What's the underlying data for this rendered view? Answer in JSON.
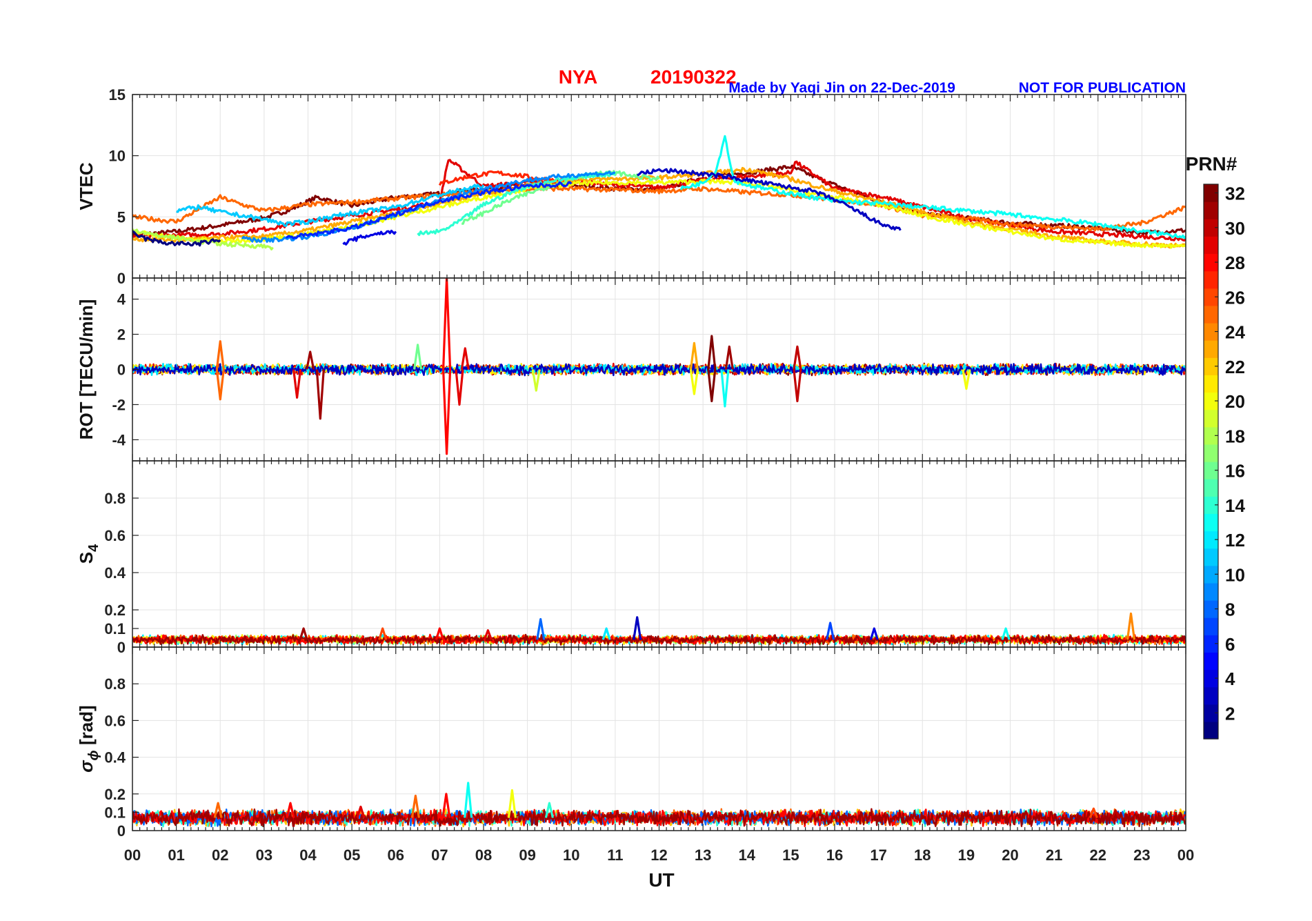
{
  "header": {
    "station": "NYA",
    "date": "20190322",
    "credit": "Made by Yaqi Jin on 22-Dec-2019",
    "notice": "NOT FOR PUBLICATION"
  },
  "colors": {
    "title": "#ff0000",
    "credit": "#0000ff",
    "notice": "#0000ff"
  },
  "chart_data": {
    "type": "line",
    "xlabel": "UT",
    "xlim": [
      0,
      24
    ],
    "x_ticks": [
      0,
      1,
      2,
      3,
      4,
      5,
      6,
      7,
      8,
      9,
      10,
      11,
      12,
      13,
      14,
      15,
      16,
      17,
      18,
      19,
      20,
      21,
      22,
      23,
      24
    ],
    "x_tick_labels": [
      "00",
      "01",
      "02",
      "03",
      "04",
      "05",
      "06",
      "07",
      "08",
      "09",
      "10",
      "11",
      "12",
      "13",
      "14",
      "15",
      "16",
      "17",
      "18",
      "19",
      "20",
      "21",
      "22",
      "23",
      "00"
    ],
    "grid": true,
    "colorbar": {
      "label": "PRN#",
      "min": 1,
      "max": 32,
      "ticks": [
        2,
        4,
        6,
        8,
        10,
        12,
        14,
        16,
        18,
        20,
        22,
        24,
        26,
        28,
        30,
        32
      ],
      "colormap": "jet",
      "placement": "right"
    },
    "panels": [
      {
        "id": "vtec",
        "ylabel": "VTEC",
        "ylim": [
          0,
          15
        ],
        "y_ticks": [
          0,
          5,
          10,
          15
        ],
        "y_tick_labels": [
          "0",
          "5",
          "10",
          "15"
        ],
        "series": [
          {
            "prn": 32,
            "x": [
              0.0,
              1.0,
              2.0,
              3.0,
              3.6,
              4.2,
              5.0,
              6.0,
              7.0,
              8.0,
              9.0,
              10.0,
              11.0,
              12.0,
              13.0,
              14.0,
              15.0,
              16.0,
              17.0,
              18.0,
              19.0,
              20.0,
              21.0,
              22.0,
              23.0,
              24.0
            ],
            "y": [
              3.5,
              3.8,
              4.3,
              4.9,
              5.6,
              6.6,
              5.9,
              6.6,
              6.9,
              7.3,
              7.6,
              7.6,
              7.3,
              7.2,
              8.2,
              8.6,
              9.1,
              7.6,
              6.3,
              5.2,
              4.9,
              4.5,
              4.3,
              4.1,
              3.7,
              3.9
            ]
          },
          {
            "prn": 29,
            "x": [
              0.0,
              1.0,
              2.0,
              3.0,
              4.0,
              5.0,
              6.0,
              7.0,
              7.2,
              8.0,
              9.0,
              10.0,
              11.0,
              12.0,
              13.0,
              14.0,
              15.0,
              15.1,
              16.0,
              17.0,
              18.0,
              19.0,
              20.0,
              21.0,
              22.0,
              23.0,
              24.0
            ],
            "y": [
              3.4,
              3.5,
              3.6,
              4.0,
              4.6,
              5.1,
              5.6,
              6.2,
              9.7,
              7.5,
              7.8,
              7.9,
              7.6,
              7.4,
              8.0,
              8.3,
              8.6,
              9.5,
              7.3,
              6.7,
              5.8,
              4.9,
              4.3,
              3.8,
              3.6,
              3.4,
              3.2
            ]
          },
          {
            "prn": 27,
            "x": [
              7.0,
              7.3,
              7.8,
              8.3,
              8.8,
              9.3,
              9.8,
              10.3
            ],
            "y": [
              7.7,
              8.0,
              8.4,
              8.6,
              8.4,
              8.1,
              8.0,
              7.9
            ]
          },
          {
            "prn": 25,
            "x": [
              0.0,
              1.0,
              2.0,
              2.5,
              3.0,
              4.0,
              5.0,
              6.0,
              7.0,
              8.0,
              9.0,
              10.0,
              11.0,
              12.0,
              13.0,
              14.0,
              15.0,
              16.0,
              17.0,
              18.0,
              19.0,
              20.0,
              21.0,
              22.0,
              23.0,
              24.0
            ],
            "y": [
              5.0,
              4.6,
              6.6,
              6.0,
              5.5,
              6.0,
              6.2,
              6.5,
              6.8,
              7.0,
              7.3,
              7.3,
              7.2,
              7.1,
              7.3,
              7.0,
              6.8,
              6.4,
              6.0,
              5.1,
              4.9,
              4.4,
              4.2,
              4.0,
              4.5,
              5.8
            ]
          },
          {
            "prn": 23,
            "x": [
              0.0,
              1.0,
              2.0,
              3.0,
              4.0,
              5.0,
              6.0,
              7.0,
              8.0,
              9.0,
              10.0,
              11.0,
              12.0,
              13.0,
              14.0,
              15.0,
              16.0,
              17.0,
              18.0,
              19.0,
              20.0,
              21.0,
              22.0,
              23.0,
              24.0
            ],
            "y": [
              3.2,
              3.1,
              3.3,
              3.4,
              3.9,
              4.6,
              5.3,
              6.1,
              6.9,
              7.6,
              8.0,
              8.1,
              8.2,
              8.5,
              8.9,
              8.1,
              7.1,
              6.3,
              5.4,
              4.6,
              4.0,
              3.4,
              3.0,
              2.8,
              2.6
            ]
          },
          {
            "prn": 20,
            "x": [
              0.0,
              1.0,
              2.0,
              3.0,
              4.0,
              5.0,
              6.0,
              7.0,
              8.0,
              9.0,
              10.0,
              11.0,
              12.0,
              13.0,
              14.0,
              15.0,
              16.0,
              17.0,
              18.0,
              19.0,
              20.0,
              21.0,
              22.0,
              23.0,
              24.0
            ],
            "y": [
              3.8,
              3.3,
              3.0,
              3.2,
              3.6,
              4.2,
              5.0,
              5.8,
              6.6,
              7.3,
              7.7,
              7.8,
              7.8,
              7.9,
              7.8,
              7.2,
              6.6,
              6.0,
              5.1,
              4.4,
              3.8,
              3.2,
              2.9,
              2.7,
              2.6
            ]
          },
          {
            "prn": 18,
            "x": [
              0.0,
              0.5,
              1.0,
              1.5,
              2.0,
              2.5,
              3.0,
              3.2
            ],
            "y": [
              4.0,
              3.5,
              3.3,
              3.0,
              2.8,
              2.7,
              2.6,
              2.5
            ]
          },
          {
            "prn": 16,
            "x": [
              7.5,
              8.0,
              8.5,
              9.0,
              9.5,
              10.0,
              10.5,
              11.0,
              11.5,
              12.0
            ],
            "y": [
              4.5,
              5.3,
              6.2,
              6.9,
              7.5,
              8.1,
              8.5,
              8.6,
              8.3,
              8.1
            ]
          },
          {
            "prn": 14,
            "x": [
              6.5,
              7.0,
              7.3,
              7.6,
              8.0,
              8.5,
              9.0,
              9.5,
              10.0,
              10.5,
              11.0
            ],
            "y": [
              3.6,
              3.8,
              4.3,
              5.0,
              6.0,
              6.8,
              7.5,
              7.9,
              8.2,
              8.4,
              8.5
            ]
          },
          {
            "prn": 13,
            "x": [
              12.5,
              13.0,
              13.3,
              13.5,
              13.7,
              14.0,
              15.0,
              16.0,
              17.0,
              18.0,
              19.0,
              20.0,
              21.0,
              22.0,
              23.0,
              24.0
            ],
            "y": [
              7.3,
              7.8,
              8.8,
              11.6,
              8.0,
              7.6,
              6.9,
              6.3,
              6.1,
              5.8,
              5.5,
              5.2,
              4.8,
              4.4,
              3.8,
              3.4
            ]
          },
          {
            "prn": 11,
            "x": [
              1.0,
              1.5,
              2.0,
              2.5,
              3.0,
              3.5,
              4.0,
              4.5,
              5.0,
              6.0,
              7.0,
              8.0
            ],
            "y": [
              5.5,
              5.8,
              5.4,
              5.1,
              4.8,
              4.4,
              4.6,
              5.0,
              5.3,
              5.8,
              6.8,
              7.6
            ]
          },
          {
            "prn": 9,
            "x": [
              2.5,
              3.0,
              3.5,
              4.0,
              4.5,
              5.0,
              5.5,
              6.0,
              7.0,
              8.0,
              9.0,
              10.0,
              11.0
            ],
            "y": [
              3.2,
              3.1,
              3.2,
              3.4,
              3.7,
              4.1,
              4.6,
              5.2,
              6.3,
              7.3,
              8.0,
              8.4,
              8.6
            ]
          },
          {
            "prn": 6,
            "x": [
              3.5,
              4.0,
              4.5,
              5.0,
              5.5,
              6.0,
              6.5,
              7.0,
              8.0,
              9.0,
              10.0
            ],
            "y": [
              3.3,
              3.5,
              3.8,
              4.1,
              4.6,
              5.2,
              5.8,
              6.3,
              7.0,
              7.5,
              7.7
            ]
          },
          {
            "prn": 4,
            "x": [
              4.8,
              5.0,
              5.5,
              6.0
            ],
            "y": [
              2.8,
              3.1,
              3.6,
              3.8
            ]
          },
          {
            "prn": 3,
            "x": [
              11.5,
              12.0,
              12.5,
              13.0,
              13.5,
              14.0,
              14.5,
              15.0,
              15.5,
              16.0,
              16.5,
              17.0,
              17.5
            ],
            "y": [
              8.5,
              8.8,
              8.7,
              8.5,
              8.3,
              8.0,
              7.7,
              7.4,
              7.1,
              6.4,
              5.5,
              4.5,
              3.9
            ]
          },
          {
            "prn": 1,
            "x": [
              0.0,
              0.3,
              0.7,
              1.0,
              1.5,
              2.0
            ],
            "y": [
              3.7,
              3.2,
              2.9,
              2.8,
              2.8,
              3.1
            ]
          }
        ]
      },
      {
        "id": "rot",
        "ylabel": "ROT [TECU/min]",
        "ylim": [
          -5.2,
          5.2
        ],
        "y_ticks": [
          -4,
          -2,
          0,
          2,
          4
        ],
        "y_tick_labels": [
          "-4",
          "-2",
          "0",
          "2",
          "4"
        ],
        "background_band": {
          "prn_colors": [
            32,
            29,
            26,
            21,
            12,
            3
          ],
          "amplitude": 0.25
        },
        "spikes": [
          {
            "x": 7.16,
            "y": 5.2,
            "prn": 28
          },
          {
            "x": 7.16,
            "y": -4.8,
            "prn": 28
          },
          {
            "x": 7.45,
            "y": -2.0,
            "prn": 29
          },
          {
            "x": 7.58,
            "y": 1.2,
            "prn": 29
          },
          {
            "x": 4.28,
            "y": -2.8,
            "prn": 31
          },
          {
            "x": 4.05,
            "y": 1.0,
            "prn": 31
          },
          {
            "x": 3.75,
            "y": -1.6,
            "prn": 29
          },
          {
            "x": 2.0,
            "y": 1.6,
            "prn": 25
          },
          {
            "x": 2.0,
            "y": -1.7,
            "prn": 25
          },
          {
            "x": 13.2,
            "y": 1.9,
            "prn": 32
          },
          {
            "x": 13.2,
            "y": -1.8,
            "prn": 32
          },
          {
            "x": 13.5,
            "y": -2.1,
            "prn": 13
          },
          {
            "x": 13.6,
            "y": 1.3,
            "prn": 31
          },
          {
            "x": 12.8,
            "y": 1.5,
            "prn": 23
          },
          {
            "x": 12.8,
            "y": -1.4,
            "prn": 20
          },
          {
            "x": 15.15,
            "y": 1.3,
            "prn": 30
          },
          {
            "x": 15.15,
            "y": -1.8,
            "prn": 30
          },
          {
            "x": 9.2,
            "y": -1.2,
            "prn": 19
          },
          {
            "x": 6.5,
            "y": 1.4,
            "prn": 16
          },
          {
            "x": 19.0,
            "y": -1.1,
            "prn": 20
          }
        ]
      },
      {
        "id": "s4",
        "ylabel": "S",
        "ylabel_sub": "4",
        "ylim": [
          0,
          1.0
        ],
        "y_ticks": [
          0,
          0.1,
          0.2,
          0.4,
          0.6,
          0.8
        ],
        "y_tick_labels": [
          "0",
          "0.1",
          "0.2",
          "0.4",
          "0.6",
          "0.8"
        ],
        "background_band": {
          "prn_colors": [
            12,
            17,
            21,
            25,
            28,
            31
          ],
          "base": 0.04,
          "amplitude": 0.02
        },
        "spikes": [
          {
            "x": 9.3,
            "y": 0.15,
            "prn": 8
          },
          {
            "x": 11.5,
            "y": 0.16,
            "prn": 3
          },
          {
            "x": 22.75,
            "y": 0.18,
            "prn": 24
          },
          {
            "x": 15.9,
            "y": 0.13,
            "prn": 7
          },
          {
            "x": 16.9,
            "y": 0.1,
            "prn": 4
          },
          {
            "x": 19.9,
            "y": 0.1,
            "prn": 13
          },
          {
            "x": 3.9,
            "y": 0.1,
            "prn": 31
          },
          {
            "x": 5.7,
            "y": 0.1,
            "prn": 26
          },
          {
            "x": 7.0,
            "y": 0.1,
            "prn": 28
          },
          {
            "x": 8.1,
            "y": 0.09,
            "prn": 29
          },
          {
            "x": 10.8,
            "y": 0.1,
            "prn": 12
          }
        ]
      },
      {
        "id": "sigma_phi",
        "ylabel": "σ",
        "ylabel_sub": "ϕ",
        "ylabel_suffix": " [rad]",
        "ylim": [
          0,
          1.0
        ],
        "y_ticks": [
          0,
          0.1,
          0.2,
          0.4,
          0.6,
          0.8
        ],
        "y_tick_labels": [
          "0",
          "0.1",
          "0.2",
          "0.4",
          "0.6",
          "0.8"
        ],
        "background_band": {
          "prn_colors": [
            22,
            25,
            14,
            8,
            28,
            31
          ],
          "base": 0.07,
          "amplitude": 0.035
        },
        "spikes": [
          {
            "x": 7.65,
            "y": 0.26,
            "prn": 13
          },
          {
            "x": 8.65,
            "y": 0.22,
            "prn": 20
          },
          {
            "x": 7.15,
            "y": 0.2,
            "prn": 28
          },
          {
            "x": 6.45,
            "y": 0.19,
            "prn": 25
          },
          {
            "x": 1.95,
            "y": 0.15,
            "prn": 25
          },
          {
            "x": 3.6,
            "y": 0.15,
            "prn": 28
          },
          {
            "x": 9.5,
            "y": 0.15,
            "prn": 14
          },
          {
            "x": 5.2,
            "y": 0.13,
            "prn": 29
          },
          {
            "x": 21.9,
            "y": 0.12,
            "prn": 26
          },
          {
            "x": 22.4,
            "y": 0.11,
            "prn": 30
          }
        ]
      }
    ]
  }
}
